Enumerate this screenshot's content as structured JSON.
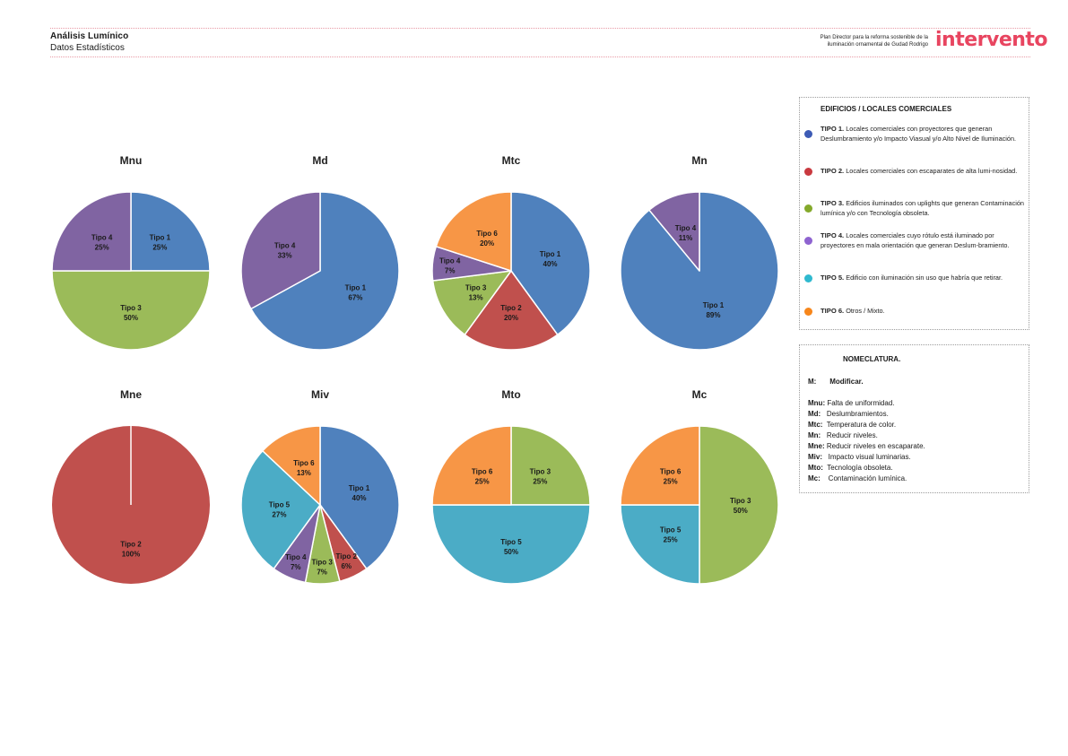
{
  "header": {
    "title": "Análisis Lumínico",
    "subtitle": "Datos Estadísticos",
    "project_line1": "Plan Director para la reforma sostenible de la",
    "project_line2": "iluminación ornamental de Gudad Rodrigo",
    "brand": "intervento",
    "brand_color": "#e84560"
  },
  "colors": {
    "tipo1": "#4f81bd",
    "tipo2": "#c0504d",
    "tipo3": "#9bbb59",
    "tipo4": "#8064a2",
    "tipo5": "#4bacc6",
    "tipo6": "#f79646"
  },
  "legend": {
    "heading": "EDIFICIOS / LOCALES COMERCIALES",
    "items": [
      {
        "key": "TIPO 1.",
        "text": " Locales comerciales con proyectores que generan Deslumbramiento y/o Impacto Viasual y/o Alto Nivel de Iluminación.",
        "color": "#3d5bb5"
      },
      {
        "key": "TIPO 2.",
        "text": " Locales comerciales con escaparates de alta lumi-nosidad.",
        "color": "#c9393f"
      },
      {
        "key": "TIPO 3.",
        "text": " Edificios iluminados con uplights que generan Contaminación lumínica y/o con Tecnología obsoleta.",
        "color": "#84a92b"
      },
      {
        "key": "TIPO 4.",
        "text": " Locales comerciales cuyo rótulo está iluminado por proyectores en mala orientación que generan Deslum-bramiento.",
        "color": "#8e63d0"
      },
      {
        "key": "TIPO 5.",
        "text": " Edificio con iluminación sin uso que habría que retirar.",
        "color": "#2fb9cf"
      },
      {
        "key": "TIPO 6.",
        "text": " Otros / Mixto.",
        "color": "#f7861b"
      }
    ]
  },
  "nomenclature": {
    "heading": "NOMECLATURA.",
    "m_key": "M:",
    "m_value": "Modificar.",
    "rows": [
      {
        "key": "Mnu:",
        "value": " Falta de uniformidad."
      },
      {
        "key": "Md:",
        "value": "   Deslumbramientos."
      },
      {
        "key": "Mtc:",
        "value": "  Temperatura de color."
      },
      {
        "key": "Mn:",
        "value": "   Reducir niveles."
      },
      {
        "key": "Mne:",
        "value": " Reducir niveles en escaparate."
      },
      {
        "key": "Miv:",
        "value": "   Impacto visual luminarias."
      },
      {
        "key": "Mto:",
        "value": "  Tecnología obsoleta."
      },
      {
        "key": "Mc:",
        "value": "    Contaminación lumínica."
      }
    ]
  },
  "chart_data": [
    {
      "type": "pie",
      "title": "Mnu",
      "slices": [
        {
          "label": "Tipo 1",
          "value": 25,
          "text": "25%",
          "color_key": "tipo1"
        },
        {
          "label": "Tipo 3",
          "value": 50,
          "text": "50%",
          "color_key": "tipo3"
        },
        {
          "label": "Tipo 4",
          "value": 25,
          "text": "25%",
          "color_key": "tipo4"
        }
      ]
    },
    {
      "type": "pie",
      "title": "Md",
      "slices": [
        {
          "label": "Tipo 1",
          "value": 67,
          "text": "67%",
          "color_key": "tipo1"
        },
        {
          "label": "Tipo 4",
          "value": 33,
          "text": "33%",
          "color_key": "tipo4"
        }
      ]
    },
    {
      "type": "pie",
      "title": "Mtc",
      "slices": [
        {
          "label": "Tipo 1",
          "value": 40,
          "text": "40%",
          "color_key": "tipo1"
        },
        {
          "label": "Tipo 2",
          "value": 20,
          "text": "20%",
          "color_key": "tipo2"
        },
        {
          "label": "Tipo 3",
          "value": 13,
          "text": "13%",
          "color_key": "tipo3"
        },
        {
          "label": "Tipo 4",
          "value": 7,
          "text": "7%",
          "color_key": "tipo4"
        },
        {
          "label": "Tipo 6",
          "value": 20,
          "text": "20%",
          "color_key": "tipo6"
        }
      ]
    },
    {
      "type": "pie",
      "title": "Mn",
      "slices": [
        {
          "label": "Tipo 1",
          "value": 89,
          "text": "89%",
          "color_key": "tipo1"
        },
        {
          "label": "Tipo 4",
          "value": 11,
          "text": "11%",
          "color_key": "tipo4"
        }
      ]
    },
    {
      "type": "pie",
      "title": "Mne",
      "slices": [
        {
          "label": "Tipo 2",
          "value": 100,
          "text": "100%",
          "color_key": "tipo2"
        }
      ]
    },
    {
      "type": "pie",
      "title": "Miv",
      "slices": [
        {
          "label": "Tipo 1",
          "value": 40,
          "text": "40%",
          "color_key": "tipo1"
        },
        {
          "label": "Tipo 2",
          "value": 6,
          "text": "6%",
          "color_key": "tipo2"
        },
        {
          "label": "Tipo 3",
          "value": 7,
          "text": "7%",
          "color_key": "tipo3"
        },
        {
          "label": "Tipo 4",
          "value": 7,
          "text": "7%",
          "color_key": "tipo4"
        },
        {
          "label": "Tipo 5",
          "value": 27,
          "text": "27%",
          "color_key": "tipo5"
        },
        {
          "label": "Tipo 6",
          "value": 13,
          "text": "13%",
          "color_key": "tipo6"
        }
      ]
    },
    {
      "type": "pie",
      "title": "Mto",
      "slices": [
        {
          "label": "Tipo 3",
          "value": 25,
          "text": "25%",
          "color_key": "tipo3"
        },
        {
          "label": "Tipo 5",
          "value": 50,
          "text": "50%",
          "color_key": "tipo5"
        },
        {
          "label": "Tipo 6",
          "value": 25,
          "text": "25%",
          "color_key": "tipo6"
        }
      ]
    },
    {
      "type": "pie",
      "title": "Mc",
      "slices": [
        {
          "label": "Tipo 3",
          "value": 50,
          "text": "50%",
          "color_key": "tipo3"
        },
        {
          "label": "Tipo 5",
          "value": 25,
          "text": "25%",
          "color_key": "tipo5"
        },
        {
          "label": "Tipo 6",
          "value": 25,
          "text": "25%",
          "color_key": "tipo6"
        }
      ]
    }
  ]
}
